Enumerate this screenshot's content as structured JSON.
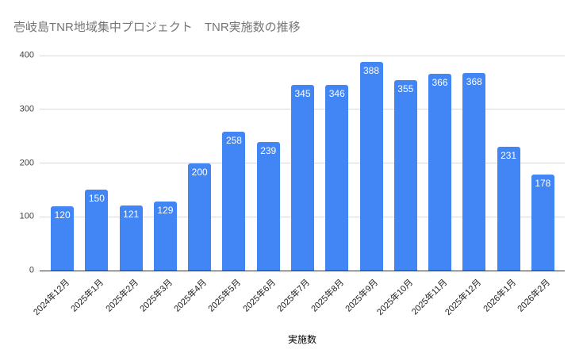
{
  "title": "壱岐島TNR地域集中プロジェクト　TNR実施数の推移",
  "chart_data": {
    "type": "bar",
    "title": "壱岐島TNR地域集中プロジェクト　TNR実施数の推移",
    "categories": [
      "2024年12月",
      "2025年1月",
      "2025年2月",
      "2025年3月",
      "2025年4月",
      "2025年5月",
      "2025年6月",
      "2025年7月",
      "2025年8月",
      "2025年9月",
      "2025年10月",
      "2025年11月",
      "2025年12月",
      "2026年1月",
      "2026年2月"
    ],
    "values": [
      120,
      150,
      121,
      129,
      200,
      258,
      239,
      345,
      346,
      388,
      355,
      366,
      368,
      231,
      178
    ],
    "xlabel": "実施数",
    "ylabel": "",
    "ylim": [
      0,
      400
    ],
    "yticks": [
      0,
      100,
      200,
      300,
      400
    ],
    "grid": true,
    "legend": "none",
    "bar_labels_visible": true
  },
  "colors": {
    "bar": "#4285f4",
    "bar_label": "#ffffff",
    "gridline": "#d9d9d9",
    "axis_line": "#333333",
    "title": "#757575",
    "y_tick": "#424242",
    "x_tick": "#222222",
    "axis_title": "#000000",
    "background": "#ffffff"
  }
}
